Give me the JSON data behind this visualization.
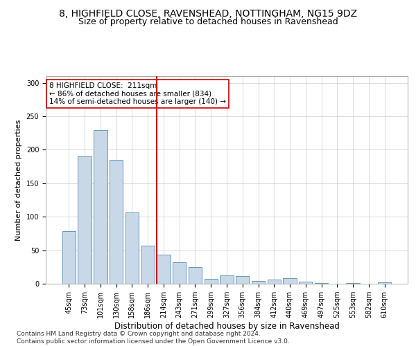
{
  "title1": "8, HIGHFIELD CLOSE, RAVENSHEAD, NOTTINGHAM, NG15 9DZ",
  "title2": "Size of property relative to detached houses in Ravenshead",
  "xlabel": "Distribution of detached houses by size in Ravenshead",
  "ylabel": "Number of detached properties",
  "categories": [
    "45sqm",
    "73sqm",
    "101sqm",
    "130sqm",
    "158sqm",
    "186sqm",
    "214sqm",
    "243sqm",
    "271sqm",
    "299sqm",
    "327sqm",
    "356sqm",
    "384sqm",
    "412sqm",
    "440sqm",
    "469sqm",
    "497sqm",
    "525sqm",
    "553sqm",
    "582sqm",
    "610sqm"
  ],
  "values": [
    79,
    190,
    229,
    185,
    106,
    57,
    43,
    32,
    25,
    7,
    12,
    11,
    4,
    6,
    8,
    3,
    1,
    0,
    1,
    0,
    2
  ],
  "bar_color": "#c8d8e8",
  "bar_edge_color": "#6699bb",
  "vline_x_idx": 6,
  "vline_color": "#cc0000",
  "annotation_text": "8 HIGHFIELD CLOSE:  211sqm\n← 86% of detached houses are smaller (834)\n14% of semi-detached houses are larger (140) →",
  "annotation_box_color": "#ffffff",
  "annotation_box_edgecolor": "#cc0000",
  "ylim": [
    0,
    310
  ],
  "yticks": [
    0,
    50,
    100,
    150,
    200,
    250,
    300
  ],
  "footnote": "Contains HM Land Registry data © Crown copyright and database right 2024.\nContains public sector information licensed under the Open Government Licence v3.0.",
  "title1_fontsize": 10,
  "title2_fontsize": 9,
  "xlabel_fontsize": 8.5,
  "ylabel_fontsize": 8,
  "tick_fontsize": 7,
  "annotation_fontsize": 7.5,
  "footnote_fontsize": 6.5
}
